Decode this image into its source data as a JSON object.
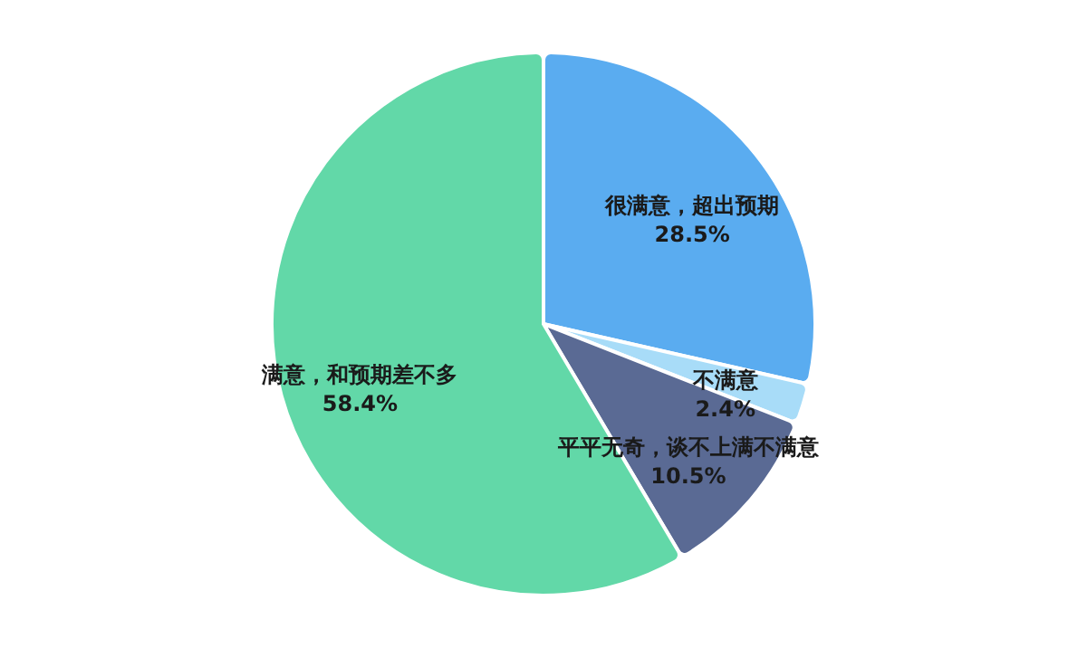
{
  "chart_data": {
    "type": "pie",
    "categories": [
      "很满意，超出预期",
      "不满意",
      "平平无奇，谈不上满不满意",
      "满意，和预期差不多"
    ],
    "values": [
      28.5,
      2.4,
      10.5,
      58.4
    ],
    "colors": [
      "#5aacf0",
      "#a8dcf8",
      "#5a6a94",
      "#62d8a8"
    ],
    "value_labels": [
      "28.5%",
      "2.4%",
      "10.5%",
      "58.4%"
    ],
    "legend": false
  }
}
